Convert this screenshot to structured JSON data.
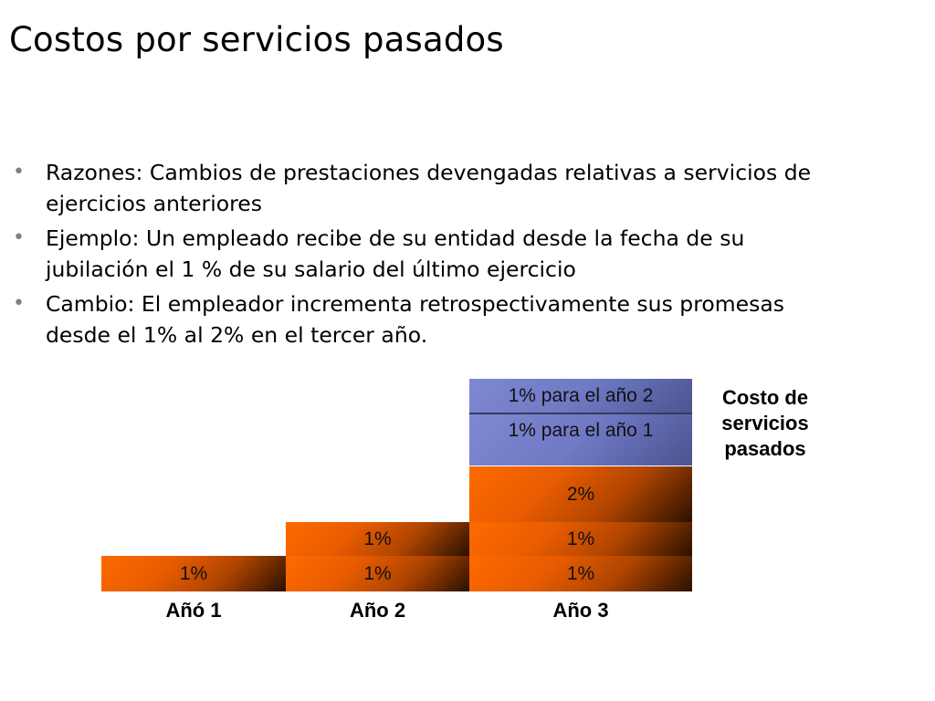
{
  "title": "Costos por servicios pasados",
  "bullets": [
    "Razones: Cambios de prestaciones devengadas relativas a servicios de ejercicios anteriores",
    "Ejemplo: Un empleado recibe de su entidad desde la fecha de su jubilación el 1 % de su salario del último ejercicio",
    "Cambio: El empleador incrementa retrospectivamente sus promesas desde el 1% al 2% en el tercer año."
  ],
  "diagram": {
    "years": [
      "Añó 1",
      "Año 2",
      "Año 3"
    ],
    "blocks": {
      "y1_row1": "1%",
      "y2_row1": "1%",
      "y2_row2": "1%",
      "y3_row1": "1%",
      "y3_row2": "1%",
      "y3_row3": "2%",
      "y3_blue1": "1% para el año 1",
      "y3_blue2": "1% para el año 2"
    },
    "side_label": "Costo de servicios pasados",
    "colors": {
      "orange": "#ff6a00",
      "blue": "#7f88d2"
    }
  }
}
